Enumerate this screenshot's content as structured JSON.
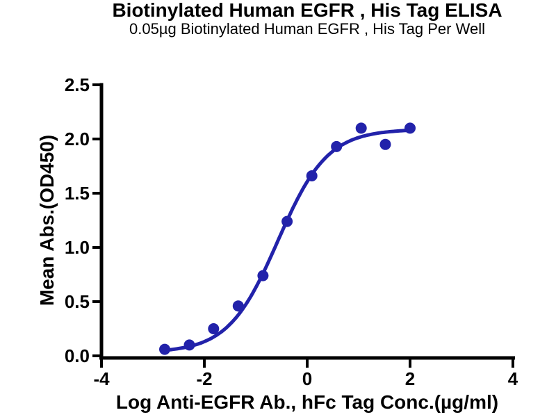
{
  "chart_data": {
    "type": "scatter",
    "title": "Biotinylated Human EGFR , His Tag ELISA",
    "subtitle": "0.05µg Biotinylated Human EGFR , His Tag Per Well",
    "xlabel": "Log Anti-EGFR Ab., hFc Tag Conc.(µg/ml)",
    "ylabel": "Mean Abs.(OD450)",
    "xlim": [
      -4,
      4
    ],
    "ylim": [
      0,
      2.5
    ],
    "x_tick_values": [
      -4,
      -2,
      0,
      2,
      4
    ],
    "x_tick_labels": [
      "-4",
      "-2",
      "0",
      "2",
      "4"
    ],
    "y_tick_values": [
      0,
      0.5,
      1.0,
      1.5,
      2.0,
      2.5
    ],
    "y_tick_labels": [
      "0.0",
      "0.5",
      "1.0",
      "1.5",
      "2.0",
      "2.5"
    ],
    "grid": false,
    "legend": "none",
    "points": [
      {
        "x": -2.77,
        "y": 0.06
      },
      {
        "x": -2.29,
        "y": 0.1
      },
      {
        "x": -1.82,
        "y": 0.25
      },
      {
        "x": -1.34,
        "y": 0.46
      },
      {
        "x": -0.86,
        "y": 0.74
      },
      {
        "x": -0.39,
        "y": 1.24
      },
      {
        "x": 0.09,
        "y": 1.66
      },
      {
        "x": 0.57,
        "y": 1.93
      },
      {
        "x": 1.05,
        "y": 2.1
      },
      {
        "x": 1.52,
        "y": 1.95
      },
      {
        "x": 2.0,
        "y": 2.1
      }
    ],
    "fit_curve": {
      "model": "4PL",
      "bottom": 0.03,
      "top": 2.09,
      "log_ec50": -0.57,
      "hill": 0.9,
      "x_start": -2.77,
      "x_end": 2.0
    },
    "marker_color": "#2222aa",
    "line_color": "#2222aa",
    "axis_color": "#000000",
    "text_color": "#000000"
  }
}
